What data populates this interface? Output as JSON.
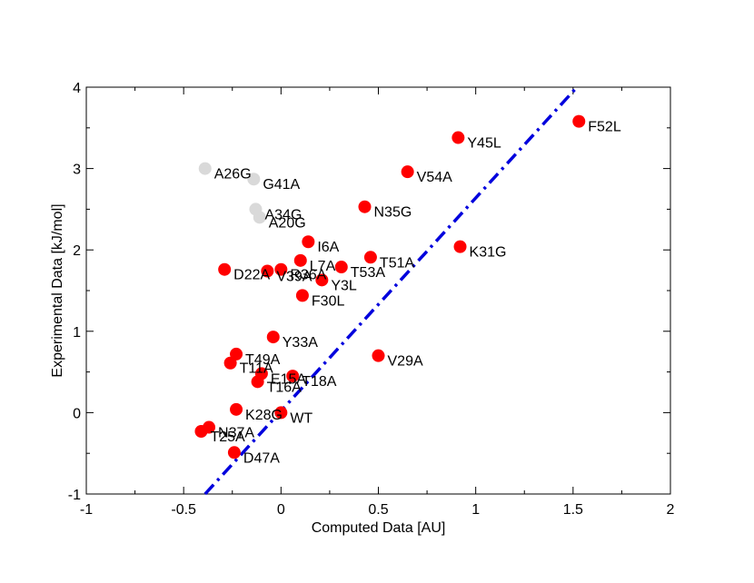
{
  "chart_data": {
    "type": "scatter",
    "xlabel": "Computed Data [AU]",
    "ylabel": "Experimental Data [kJ/mol]",
    "xlim": [
      -1,
      2
    ],
    "ylim": [
      -1,
      4
    ],
    "x_ticks": [
      -1,
      -0.5,
      0,
      0.5,
      1,
      1.5,
      2
    ],
    "x_tick_labels": [
      "-1",
      "-0.5",
      "0",
      "0.5",
      "1",
      "1.5",
      "2"
    ],
    "y_ticks": [
      -1,
      0,
      1,
      2,
      3,
      4
    ],
    "y_tick_labels": [
      "-1",
      "0",
      "1",
      "2",
      "3",
      "4"
    ],
    "colors": {
      "primary": "#ff0000",
      "secondary": "#d9d9d9",
      "fit": "#0000dd"
    },
    "fit_line": {
      "style": "dash-dot",
      "points": [
        [
          -0.39,
          -1.0
        ],
        [
          1.52,
          4.0
        ]
      ]
    },
    "series": [
      {
        "name": "primary",
        "color": "#ff0000",
        "points": [
          {
            "label": "F52L",
            "x": 1.53,
            "y": 3.58
          },
          {
            "label": "Y45L",
            "x": 0.91,
            "y": 3.38
          },
          {
            "label": "V54A",
            "x": 0.65,
            "y": 2.96
          },
          {
            "label": "N35G",
            "x": 0.43,
            "y": 2.53
          },
          {
            "label": "K31G",
            "x": 0.92,
            "y": 2.04
          },
          {
            "label": "I6A",
            "x": 0.14,
            "y": 2.1
          },
          {
            "label": "T51A",
            "x": 0.46,
            "y": 1.91
          },
          {
            "label": "L7A",
            "x": 0.1,
            "y": 1.87
          },
          {
            "label": "T53A",
            "x": 0.31,
            "y": 1.79
          },
          {
            "label": "D22A",
            "x": -0.29,
            "y": 1.76
          },
          {
            "label": "V39A",
            "x": -0.07,
            "y": 1.74
          },
          {
            "label": "R36A",
            "x": 0.0,
            "y": 1.76
          },
          {
            "label": "Y3L",
            "x": 0.21,
            "y": 1.63
          },
          {
            "label": "F30L",
            "x": 0.11,
            "y": 1.44
          },
          {
            "label": "Y33A",
            "x": -0.04,
            "y": 0.93
          },
          {
            "label": "V29A",
            "x": 0.5,
            "y": 0.7
          },
          {
            "label": "T49A",
            "x": -0.23,
            "y": 0.72
          },
          {
            "label": "T11A",
            "x": -0.26,
            "y": 0.61
          },
          {
            "label": "E15A",
            "x": -0.1,
            "y": 0.48
          },
          {
            "label": "T18A",
            "x": 0.06,
            "y": 0.45
          },
          {
            "label": "T16A",
            "x": -0.12,
            "y": 0.38
          },
          {
            "label": "K28G",
            "x": -0.23,
            "y": 0.04
          },
          {
            "label": "WT",
            "x": 0.0,
            "y": 0.0
          },
          {
            "label": "N37A",
            "x": -0.37,
            "y": -0.18
          },
          {
            "label": "T25A",
            "x": -0.41,
            "y": -0.23
          },
          {
            "label": "D47A",
            "x": -0.24,
            "y": -0.49
          }
        ]
      },
      {
        "name": "secondary",
        "color": "#d9d9d9",
        "points": [
          {
            "label": "A26G",
            "x": -0.39,
            "y": 3.0
          },
          {
            "label": "G41A",
            "x": -0.14,
            "y": 2.87
          },
          {
            "label": "A34G",
            "x": -0.13,
            "y": 2.5
          },
          {
            "label": "A20G",
            "x": -0.11,
            "y": 2.4
          }
        ]
      }
    ]
  }
}
